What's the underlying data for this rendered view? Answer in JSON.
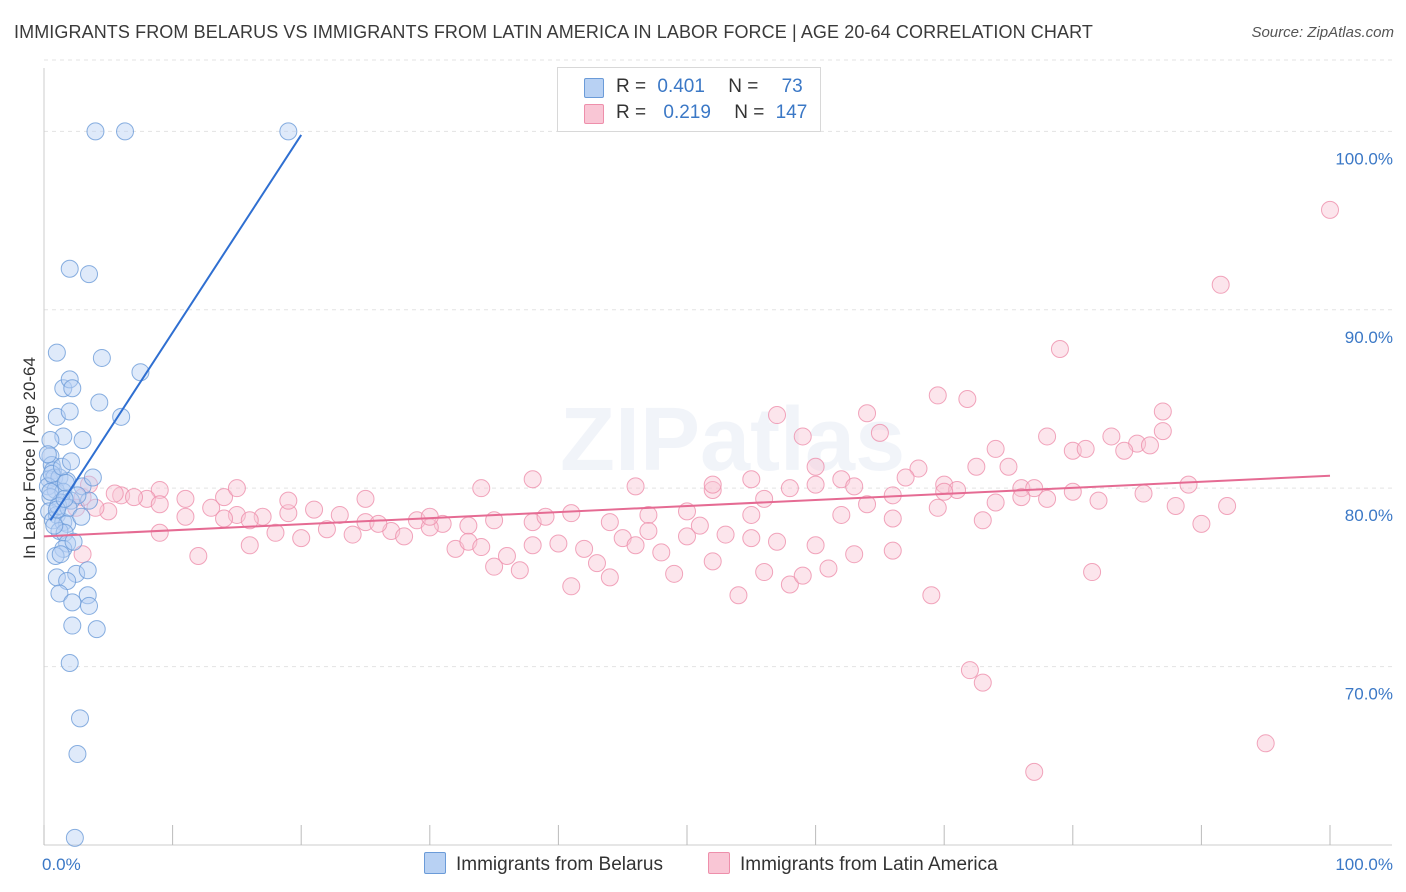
{
  "title": "IMMIGRANTS FROM BELARUS VS IMMIGRANTS FROM LATIN AMERICA IN LABOR FORCE | AGE 20-64 CORRELATION CHART",
  "source": "Source: ZipAtlas.com",
  "watermark": "ZIPatlas",
  "legend": {
    "belarus": {
      "r_label": "R =",
      "r_value": "0.401",
      "n_label": "N =",
      "n_value": "73"
    },
    "latin": {
      "r_label": "R =",
      "r_value": "0.219",
      "n_label": "N =",
      "n_value": "147"
    }
  },
  "bottom_legend": {
    "belarus": "Immigrants from Belarus",
    "latin": "Immigrants from Latin America"
  },
  "colors": {
    "belarus_fill": "#b8d1f3",
    "belarus_stroke": "#6b9bd8",
    "belarus_line": "#2f6fd1",
    "latin_fill": "#f9c6d5",
    "latin_stroke": "#ee8fab",
    "latin_line": "#e56b93",
    "axis_text": "#3b78c6",
    "grid": "#e3e3e3"
  },
  "chart_data": {
    "type": "scatter",
    "title": "IMMIGRANTS FROM BELARUS VS IMMIGRANTS FROM LATIN AMERICA IN LABOR FORCE | AGE 20-64 CORRELATION CHART",
    "xlabel": "",
    "ylabel": "In Labor Force | Age 20-64",
    "xlim": [
      0,
      100
    ],
    "ylim": [
      60,
      104
    ],
    "x_tick_labels": [
      "0.0%",
      "100.0%"
    ],
    "y_ticks": [
      70,
      80,
      90,
      100
    ],
    "y_tick_labels": [
      "70.0%",
      "80.0%",
      "90.0%",
      "100.0%"
    ],
    "series": [
      {
        "name": "Immigrants from Belarus",
        "R": 0.401,
        "N": 73,
        "trend": {
          "x": [
            0.5,
            20
          ],
          "y": [
            78.2,
            99.8
          ]
        },
        "points": [
          [
            4,
            100
          ],
          [
            6.3,
            100
          ],
          [
            19,
            100
          ],
          [
            2,
            92.3
          ],
          [
            3.5,
            92
          ],
          [
            1,
            87.6
          ],
          [
            4.5,
            87.3
          ],
          [
            7.5,
            86.5
          ],
          [
            1.5,
            85.6
          ],
          [
            2,
            86.1
          ],
          [
            2.2,
            85.6
          ],
          [
            4.3,
            84.8
          ],
          [
            6,
            84
          ],
          [
            1,
            84
          ],
          [
            2,
            84.3
          ],
          [
            1.5,
            82.9
          ],
          [
            3,
            82.7
          ],
          [
            0.5,
            82.7
          ],
          [
            0.5,
            81.8
          ],
          [
            0.6,
            81.3
          ],
          [
            0.7,
            81
          ],
          [
            0.4,
            80.5
          ],
          [
            0.8,
            80.6
          ],
          [
            1.2,
            80.6
          ],
          [
            1.8,
            80.4
          ],
          [
            0.3,
            80.1
          ],
          [
            0.9,
            79.9
          ],
          [
            1.5,
            79.8
          ],
          [
            3,
            80.1
          ],
          [
            0.5,
            79.5
          ],
          [
            1.3,
            79.2
          ],
          [
            2.1,
            79.3
          ],
          [
            0.4,
            78.7
          ],
          [
            1,
            78.5
          ],
          [
            0.7,
            78.2
          ],
          [
            1.5,
            78.1
          ],
          [
            1.8,
            78
          ],
          [
            1.2,
            77.6
          ],
          [
            1.6,
            77.5
          ],
          [
            3.8,
            80.6
          ],
          [
            3.5,
            79.3
          ],
          [
            1.8,
            76.9
          ],
          [
            1.5,
            76.6
          ],
          [
            0.9,
            76.2
          ],
          [
            2.5,
            75.2
          ],
          [
            1,
            75
          ],
          [
            1.8,
            74.8
          ],
          [
            1.2,
            74.1
          ],
          [
            3.4,
            75.4
          ],
          [
            3.4,
            74
          ],
          [
            2.2,
            73.6
          ],
          [
            3.5,
            73.4
          ],
          [
            2.2,
            72.3
          ],
          [
            4.1,
            72.1
          ],
          [
            2,
            70.2
          ],
          [
            2.8,
            67.1
          ],
          [
            2.6,
            65.1
          ],
          [
            2.4,
            60.4
          ],
          [
            1.1,
            79
          ],
          [
            0.6,
            80.8
          ],
          [
            1.4,
            81.2
          ],
          [
            2.6,
            79.6
          ],
          [
            1.9,
            78.9
          ],
          [
            0.8,
            77.9
          ],
          [
            2.3,
            77
          ],
          [
            0.3,
            81.9
          ],
          [
            1.7,
            80.3
          ],
          [
            2.9,
            78.4
          ],
          [
            1.3,
            76.3
          ],
          [
            0.5,
            79.8
          ],
          [
            2.1,
            81.5
          ],
          [
            1,
            78.8
          ],
          [
            1.6,
            79.4
          ]
        ]
      },
      {
        "name": "Immigrants from Latin America",
        "R": 0.219,
        "N": 147,
        "trend": {
          "x": [
            0,
            100
          ],
          "y": [
            77.3,
            80.7
          ]
        },
        "points": [
          [
            100,
            95.6
          ],
          [
            91.5,
            91.4
          ],
          [
            79,
            87.8
          ],
          [
            57,
            84.1
          ],
          [
            64,
            84.2
          ],
          [
            69.5,
            85.2
          ],
          [
            71.8,
            85
          ],
          [
            68,
            81.1
          ],
          [
            72.5,
            81.2
          ],
          [
            74,
            82.2
          ],
          [
            78,
            82.9
          ],
          [
            80,
            82.1
          ],
          [
            85,
            82.5
          ],
          [
            87,
            83.2
          ],
          [
            81,
            82.2
          ],
          [
            83,
            82.9
          ],
          [
            87,
            84.3
          ],
          [
            65,
            83.1
          ],
          [
            59,
            82.9
          ],
          [
            84,
            82.1
          ],
          [
            86,
            82.4
          ],
          [
            60,
            81.2
          ],
          [
            62,
            80.5
          ],
          [
            70,
            80.2
          ],
          [
            55,
            80.5
          ],
          [
            52,
            79.9
          ],
          [
            56,
            79.4
          ],
          [
            60,
            80.2
          ],
          [
            64,
            79.1
          ],
          [
            66,
            79.6
          ],
          [
            69.5,
            78.9
          ],
          [
            71,
            79.9
          ],
          [
            74,
            79.2
          ],
          [
            76,
            80
          ],
          [
            78,
            79.4
          ],
          [
            80,
            79.8
          ],
          [
            82,
            79.3
          ],
          [
            85.5,
            79.7
          ],
          [
            88,
            79
          ],
          [
            90,
            78
          ],
          [
            73,
            78.2
          ],
          [
            62,
            78.5
          ],
          [
            55,
            78.5
          ],
          [
            50,
            78.7
          ],
          [
            47,
            78.5
          ],
          [
            44,
            78.1
          ],
          [
            41,
            78.6
          ],
          [
            38,
            78.1
          ],
          [
            35,
            78.2
          ],
          [
            33,
            77.9
          ],
          [
            31,
            78
          ],
          [
            29,
            78.2
          ],
          [
            27,
            77.6
          ],
          [
            25,
            78.1
          ],
          [
            23,
            78.5
          ],
          [
            21,
            78.8
          ],
          [
            19,
            78.6
          ],
          [
            17,
            78.4
          ],
          [
            15,
            78.5
          ],
          [
            13,
            78.9
          ],
          [
            11,
            79.4
          ],
          [
            9,
            79.9
          ],
          [
            8,
            79.4
          ],
          [
            6,
            79.6
          ],
          [
            5,
            78.7
          ],
          [
            4,
            78.9
          ],
          [
            3,
            79.5
          ],
          [
            2.5,
            78.9
          ],
          [
            3.5,
            80.2
          ],
          [
            5.5,
            79.7
          ],
          [
            7,
            79.5
          ],
          [
            9,
            79.1
          ],
          [
            11,
            78.4
          ],
          [
            14,
            79.5
          ],
          [
            16,
            78.2
          ],
          [
            18,
            77.5
          ],
          [
            20,
            77.2
          ],
          [
            22,
            77.7
          ],
          [
            24,
            77.4
          ],
          [
            26,
            78
          ],
          [
            28,
            77.3
          ],
          [
            30,
            77.8
          ],
          [
            32,
            76.6
          ],
          [
            33,
            77
          ],
          [
            34,
            76.7
          ],
          [
            35,
            75.6
          ],
          [
            36,
            76.2
          ],
          [
            37,
            75.4
          ],
          [
            38,
            76.8
          ],
          [
            39,
            78.4
          ],
          [
            40,
            76.9
          ],
          [
            41,
            74.5
          ],
          [
            42,
            76.6
          ],
          [
            43,
            75.8
          ],
          [
            44,
            75
          ],
          [
            45,
            77.2
          ],
          [
            46,
            76.8
          ],
          [
            47,
            77.6
          ],
          [
            48,
            76.4
          ],
          [
            49,
            75.2
          ],
          [
            50,
            77.3
          ],
          [
            51,
            77.9
          ],
          [
            52,
            75.9
          ],
          [
            53,
            77.4
          ],
          [
            54,
            74
          ],
          [
            55,
            77.2
          ],
          [
            56,
            75.3
          ],
          [
            57,
            77
          ],
          [
            58,
            74.6
          ],
          [
            59,
            75.1
          ],
          [
            60,
            76.8
          ],
          [
            61,
            75.5
          ],
          [
            63,
            76.3
          ],
          [
            66,
            76.5
          ],
          [
            69,
            74
          ],
          [
            72,
            69.8
          ],
          [
            73,
            69.1
          ],
          [
            81.5,
            75.3
          ],
          [
            66,
            78.3
          ],
          [
            75,
            81.2
          ],
          [
            67,
            80.6
          ],
          [
            77,
            80
          ],
          [
            89,
            80.2
          ],
          [
            92,
            79
          ],
          [
            14,
            78.3
          ],
          [
            19,
            79.3
          ],
          [
            25,
            79.4
          ],
          [
            30,
            78.4
          ],
          [
            34,
            80
          ],
          [
            38,
            80.5
          ],
          [
            46,
            80.1
          ],
          [
            52,
            80.2
          ],
          [
            58,
            80
          ],
          [
            63,
            80.1
          ],
          [
            70,
            79.8
          ],
          [
            76,
            79.5
          ],
          [
            95,
            65.7
          ],
          [
            77,
            64.1
          ],
          [
            16,
            76.8
          ],
          [
            12,
            76.2
          ],
          [
            9,
            77.5
          ],
          [
            3,
            76.3
          ],
          [
            15,
            80
          ]
        ]
      }
    ]
  }
}
